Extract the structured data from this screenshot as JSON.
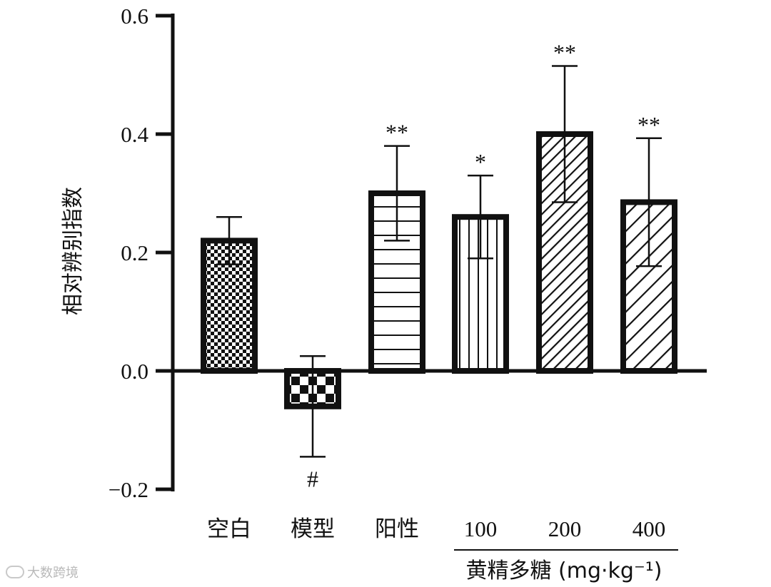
{
  "chart_data": {
    "type": "bar",
    "title": "",
    "ylabel": "相对辨别指数",
    "xlabel": "",
    "ylim": [
      -0.2,
      0.6
    ],
    "yticks": [
      "0.6",
      "0.4",
      "0.2",
      "0.0",
      "−0.2"
    ],
    "ytick_values": [
      0.6,
      0.4,
      0.2,
      0.0,
      -0.2
    ],
    "categories": [
      "空白",
      "模型",
      "阳性",
      "100",
      "200",
      "400"
    ],
    "values": [
      0.22,
      -0.06,
      0.3,
      0.26,
      0.4,
      0.285
    ],
    "error": [
      0.04,
      0.085,
      0.08,
      0.07,
      0.115,
      0.108
    ],
    "significance": [
      "",
      "#",
      "**",
      "*",
      "**",
      "**"
    ],
    "patterns": [
      "checker-fine",
      "checker-coarse",
      "horizontal",
      "vertical",
      "diagonal-dense",
      "diagonal-sparse"
    ],
    "group_label": "黄精多糖 (mg·kg⁻¹)",
    "grid": false,
    "legend": "none",
    "colors": {
      "bar_stroke": "#111111",
      "fill": "#111111",
      "background": "#ffffff"
    }
  },
  "watermark": {
    "text": "大数跨境"
  }
}
